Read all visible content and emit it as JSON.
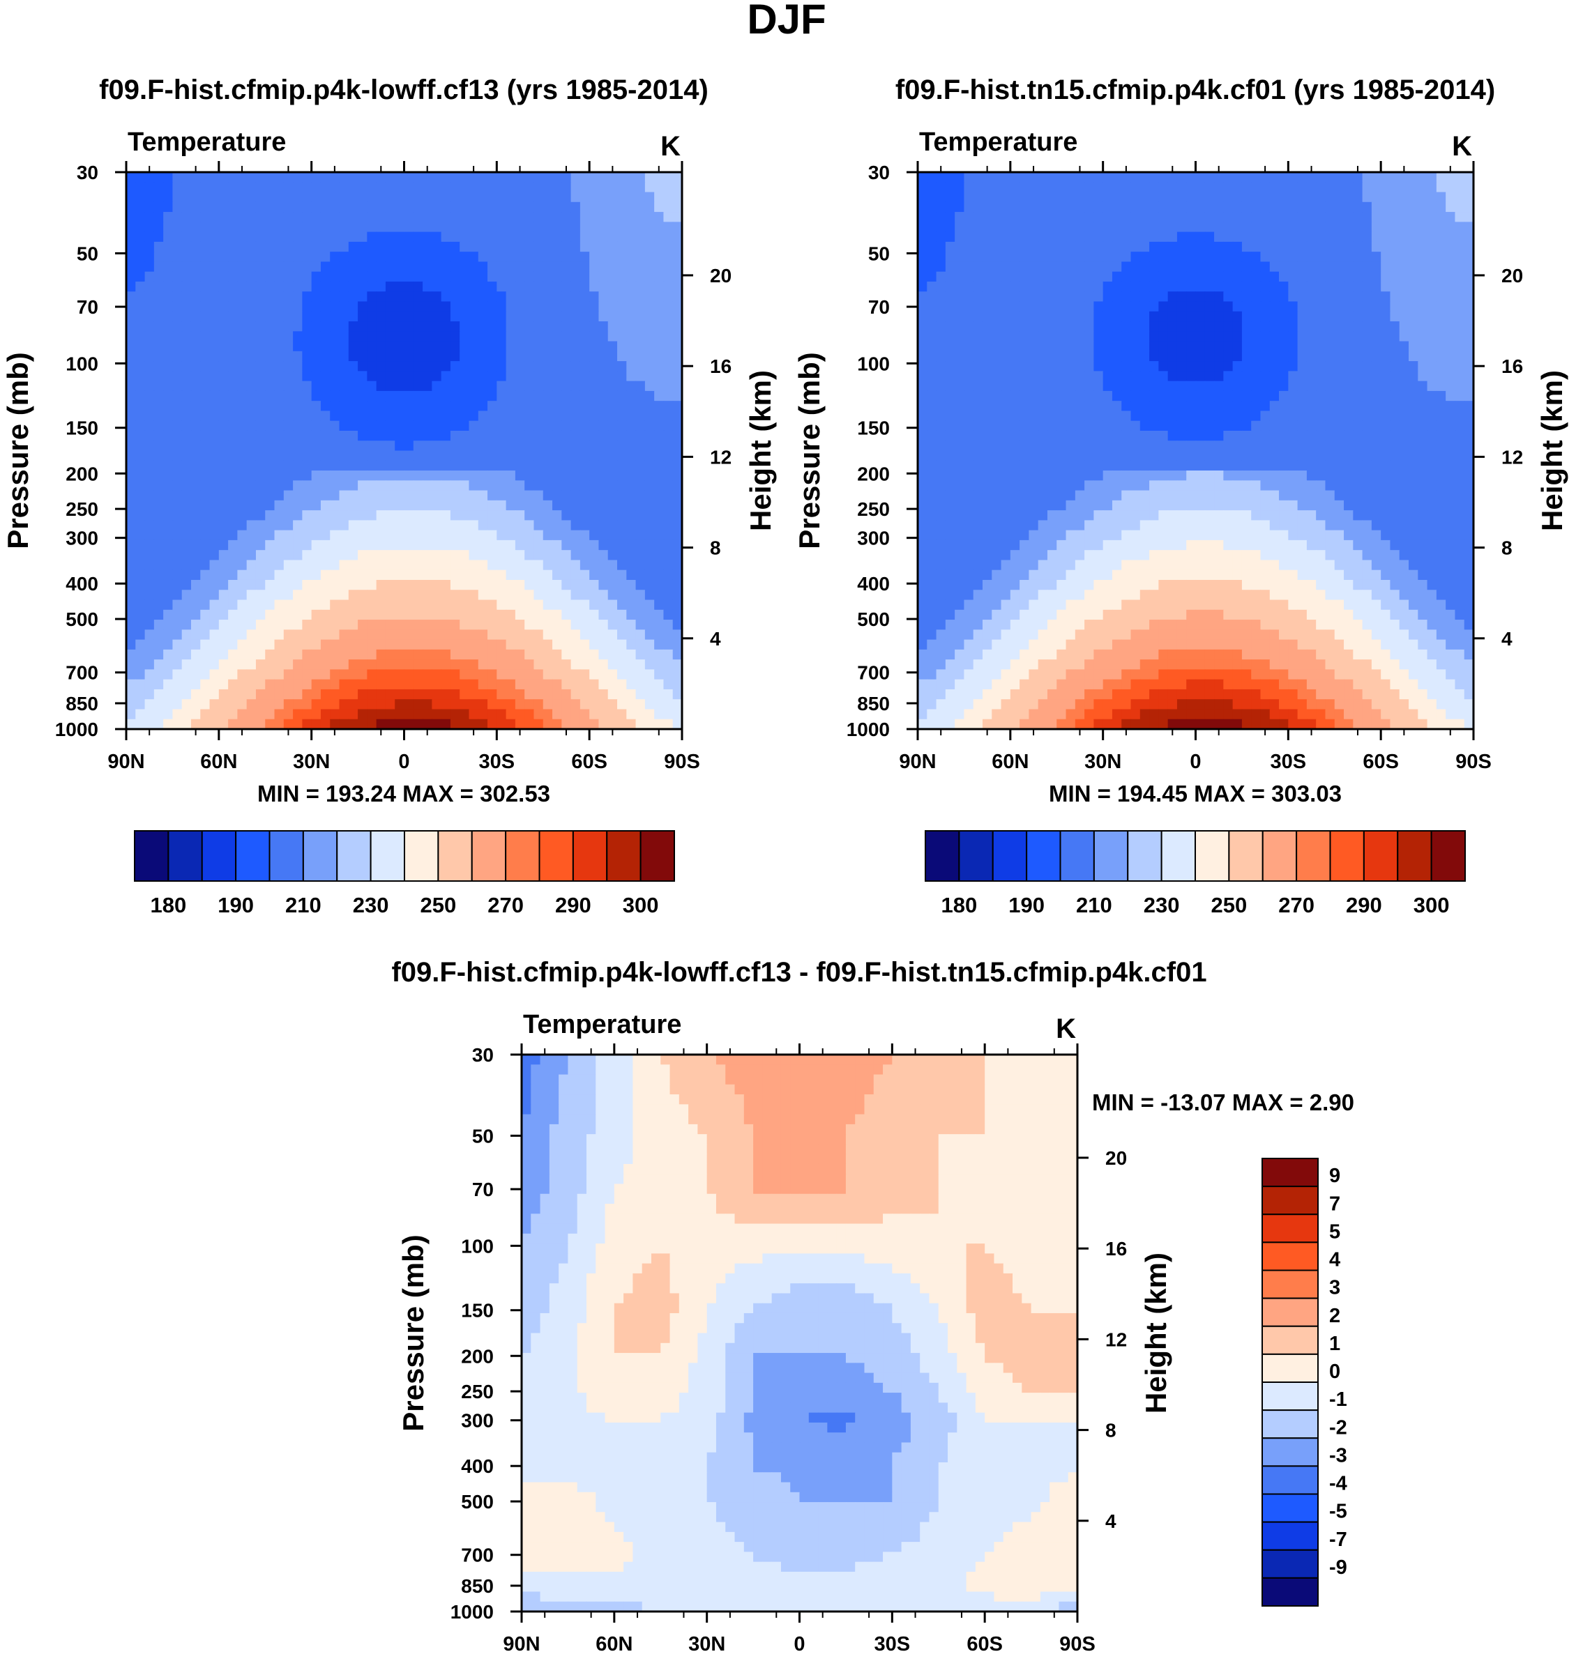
{
  "figure": {
    "title": "DJF"
  },
  "chart_data": [
    {
      "type": "heatmap",
      "id": "left",
      "title": "f09.F-hist.cfmip.p4k-lowff.cf13 (yrs 1985-2014)",
      "variable": "Temperature",
      "units": "K",
      "xlabel": "",
      "ylabel": "Pressure (mb)",
      "y2label": "Height (km)",
      "x_ticks": [
        "90N",
        "60N",
        "30N",
        "0",
        "30S",
        "60S",
        "90S"
      ],
      "y_ticks": [
        30,
        50,
        70,
        100,
        150,
        200,
        250,
        300,
        400,
        500,
        700,
        850,
        1000
      ],
      "y2_ticks": [
        20,
        16,
        12,
        8,
        4
      ],
      "y_scale": "log",
      "stats": "MIN = 193.24  MAX = 302.53",
      "min": 193.24,
      "max": 302.53,
      "colorbar": {
        "orientation": "horizontal",
        "labels": [
          "180",
          "190",
          "210",
          "230",
          "250",
          "270",
          "290",
          "300"
        ],
        "colors": [
          "#0a0a78",
          "#0a28b4",
          "#0f3ce6",
          "#1e5aff",
          "#4678f5",
          "#78a0fa",
          "#b4cdff",
          "#dceaff",
          "#fff0e1",
          "#ffc8aa",
          "#ffa582",
          "#ff7d4b",
          "#ff5a23",
          "#e6370f",
          "#b42305",
          "#820a0a"
        ]
      }
    },
    {
      "type": "heatmap",
      "id": "right",
      "title": "f09.F-hist.tn15.cfmip.p4k.cf01 (yrs 1985-2014)",
      "variable": "Temperature",
      "units": "K",
      "xlabel": "",
      "ylabel": "Pressure (mb)",
      "y2label": "Height (km)",
      "x_ticks": [
        "90N",
        "60N",
        "30N",
        "0",
        "30S",
        "60S",
        "90S"
      ],
      "y_ticks": [
        30,
        50,
        70,
        100,
        150,
        200,
        250,
        300,
        400,
        500,
        700,
        850,
        1000
      ],
      "y2_ticks": [
        20,
        16,
        12,
        8,
        4
      ],
      "y_scale": "log",
      "stats": "MIN = 194.45  MAX = 303.03",
      "min": 194.45,
      "max": 303.03,
      "colorbar": {
        "orientation": "horizontal",
        "labels": [
          "180",
          "190",
          "210",
          "230",
          "250",
          "270",
          "290",
          "300"
        ],
        "colors": [
          "#0a0a78",
          "#0a28b4",
          "#0f3ce6",
          "#1e5aff",
          "#4678f5",
          "#78a0fa",
          "#b4cdff",
          "#dceaff",
          "#fff0e1",
          "#ffc8aa",
          "#ffa582",
          "#ff7d4b",
          "#ff5a23",
          "#e6370f",
          "#b42305",
          "#820a0a"
        ]
      }
    },
    {
      "type": "heatmap",
      "id": "diff",
      "title": "f09.F-hist.cfmip.p4k-lowff.cf13 - f09.F-hist.tn15.cfmip.p4k.cf01",
      "variable": "Temperature",
      "units": "K",
      "xlabel": "",
      "ylabel": "Pressure (mb)",
      "y2label": "Height (km)",
      "x_ticks": [
        "90N",
        "60N",
        "30N",
        "0",
        "30S",
        "60S",
        "90S"
      ],
      "y_ticks": [
        30,
        50,
        70,
        100,
        150,
        200,
        250,
        300,
        400,
        500,
        700,
        850,
        1000
      ],
      "y2_ticks": [
        20,
        16,
        12,
        8,
        4
      ],
      "y_scale": "log",
      "stats": "MIN = -13.07  MAX =   2.90",
      "min": -13.07,
      "max": 2.9,
      "colorbar": {
        "orientation": "vertical",
        "labels": [
          "9",
          "7",
          "5",
          "4",
          "3",
          "2",
          "1",
          "0",
          "-1",
          "-2",
          "-3",
          "-4",
          "-5",
          "-7",
          "-9"
        ],
        "colors": [
          "#820a0a",
          "#b42305",
          "#e6370f",
          "#ff5a23",
          "#ff7d4b",
          "#ffa582",
          "#ffc8aa",
          "#fff0e1",
          "#dceaff",
          "#b4cdff",
          "#78a0fa",
          "#4678f5",
          "#1e5aff",
          "#0f3ce6",
          "#0a28b4",
          "#0a0a78"
        ]
      }
    }
  ]
}
